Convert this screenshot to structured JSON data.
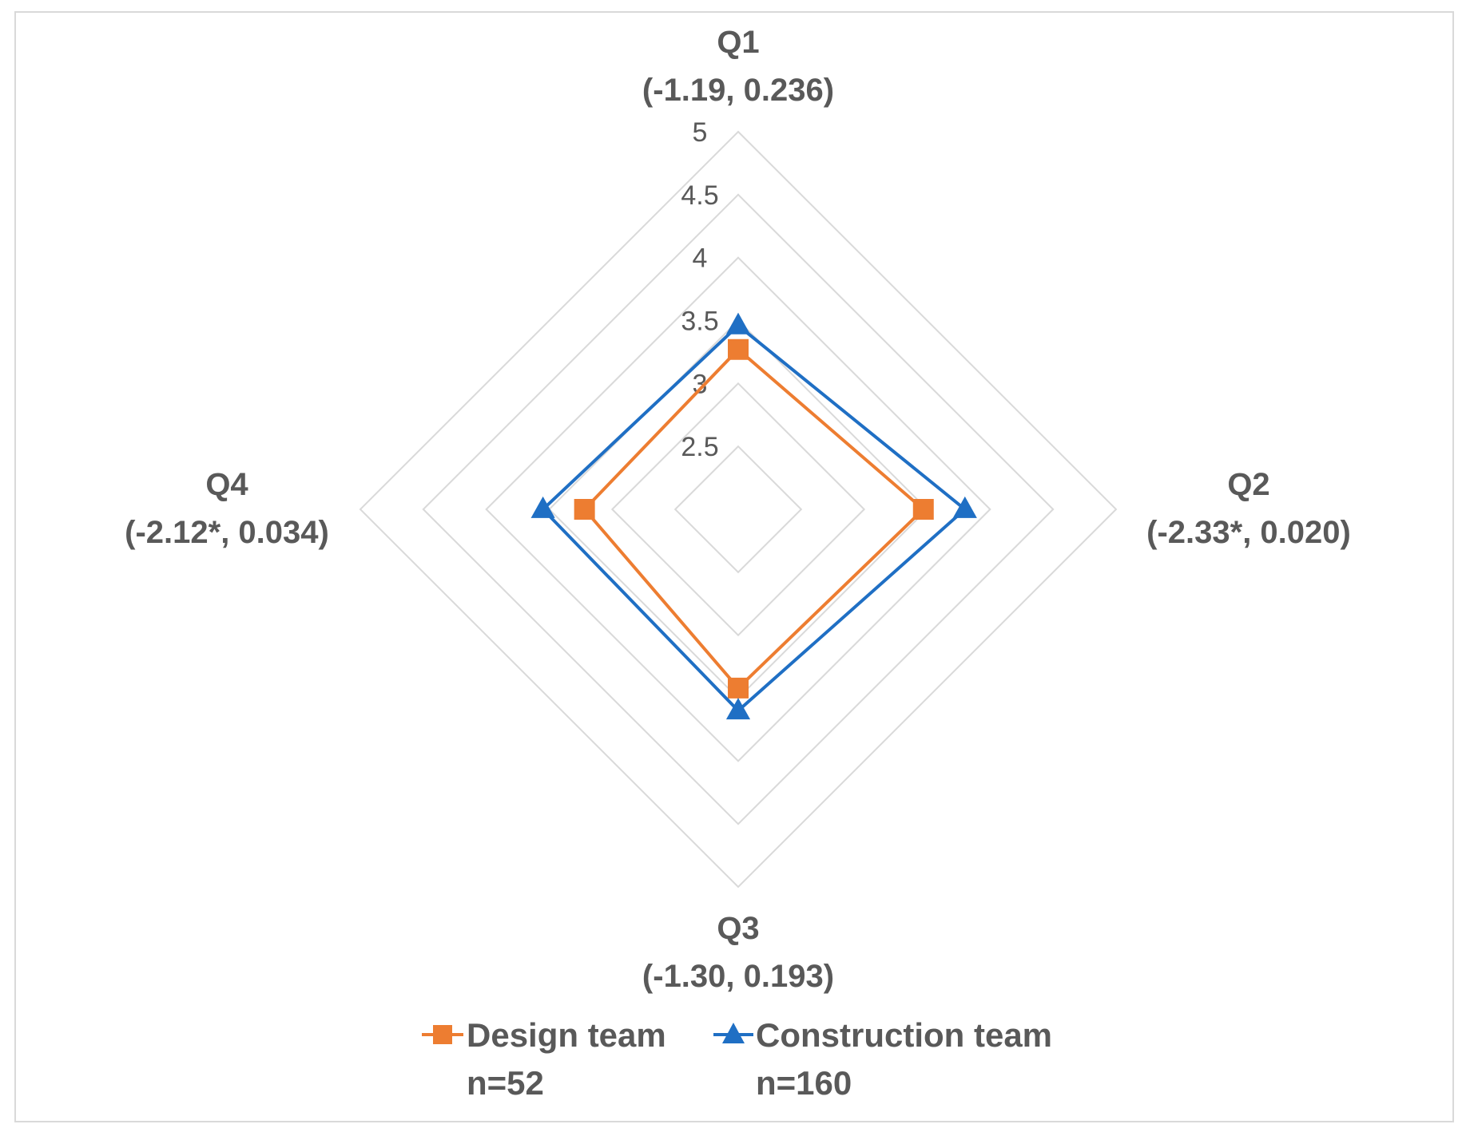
{
  "chart_data": {
    "type": "radar",
    "title": "",
    "axes": [
      {
        "name": "Q1",
        "stats": "(-1.19, 0.236)"
      },
      {
        "name": "Q2",
        "stats": "(-2.33*, 0.020)"
      },
      {
        "name": "Q3",
        "stats": "(-1.30, 0.193)"
      },
      {
        "name": "Q4",
        "stats": "(-2.12*, 0.034)"
      }
    ],
    "categories": [
      "Q1",
      "Q2",
      "Q3",
      "Q4"
    ],
    "rlim": [
      2,
      5
    ],
    "ticks": [
      2.5,
      3,
      3.5,
      4,
      4.5,
      5
    ],
    "tick_labels": [
      "2.5",
      "3",
      "3.5",
      "4",
      "4.5",
      "5"
    ],
    "series": [
      {
        "name": "Design team",
        "n_label": "n=52",
        "marker": "square",
        "color": "#ED7D31",
        "values": [
          3.27,
          3.47,
          3.42,
          3.22
        ]
      },
      {
        "name": "Construction team",
        "n_label": "n=160",
        "marker": "triangle",
        "color": "#1F6FC4",
        "values": [
          3.46,
          3.8,
          3.6,
          3.55
        ]
      }
    ],
    "legend_position": "bottom",
    "grid": true,
    "grid_color": "#D9D9D9",
    "text_color": "#595959"
  }
}
